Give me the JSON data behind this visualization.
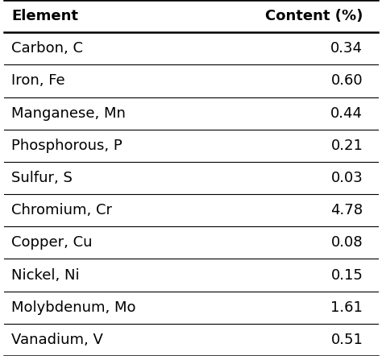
{
  "col1_header": "Element",
  "col2_header": "Content (%)",
  "rows": [
    [
      "Carbon, C",
      "0.34"
    ],
    [
      "Iron, Fe",
      "0.60"
    ],
    [
      "Manganese, Mn",
      "0.44"
    ],
    [
      "Phosphorous, P",
      "0.21"
    ],
    [
      "Sulfur, S",
      "0.03"
    ],
    [
      "Chromium, Cr",
      "4.78"
    ],
    [
      "Copper, Cu",
      "0.08"
    ],
    [
      "Nickel, Ni",
      "0.15"
    ],
    [
      "Molybdenum, Mo",
      "1.61"
    ],
    [
      "Vanadium, V",
      "0.51"
    ]
  ],
  "background_color": "#ffffff",
  "header_fontsize": 13,
  "cell_fontsize": 13,
  "line_color": "#000000",
  "text_color": "#000000"
}
